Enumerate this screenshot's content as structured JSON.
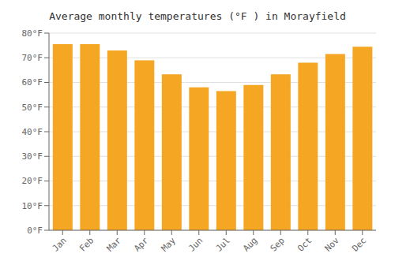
{
  "chart_data": {
    "type": "bar",
    "title": "Average monthly temperatures (°F ) in Morayfield",
    "categories": [
      "Jan",
      "Feb",
      "Mar",
      "Apr",
      "May",
      "Jun",
      "Jul",
      "Aug",
      "Sep",
      "Oct",
      "Nov",
      "Dec"
    ],
    "values": [
      75.5,
      75.5,
      73.0,
      69.0,
      63.3,
      58.0,
      56.5,
      59.0,
      63.3,
      68.0,
      71.5,
      74.5
    ],
    "color": "#F5A623",
    "ylim": [
      0,
      80
    ],
    "yticks": [
      {
        "value": 0,
        "label": "0°F"
      },
      {
        "value": 10,
        "label": "10°F"
      },
      {
        "value": 20,
        "label": "20°F"
      },
      {
        "value": 30,
        "label": "30°F"
      },
      {
        "value": 40,
        "label": "40°F"
      },
      {
        "value": 50,
        "label": "50°F"
      },
      {
        "value": 60,
        "label": "60°F"
      },
      {
        "value": 70,
        "label": "70°F"
      },
      {
        "value": 80,
        "label": "80°F"
      }
    ],
    "grid": true
  }
}
